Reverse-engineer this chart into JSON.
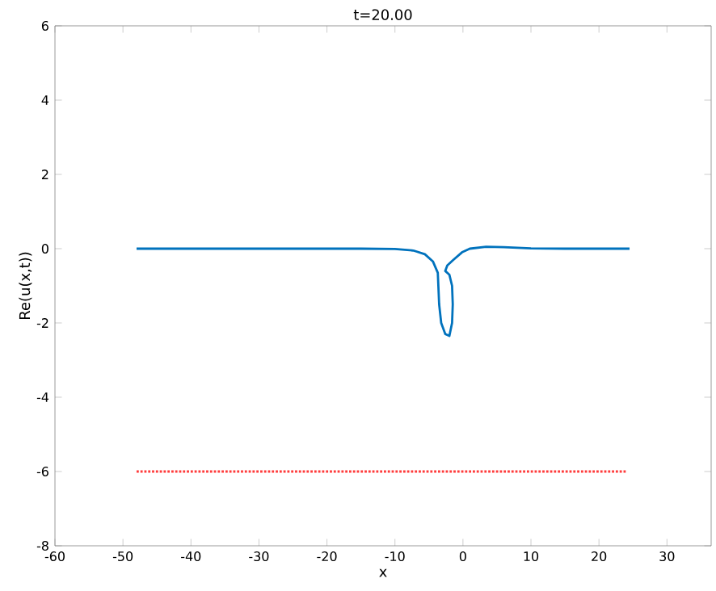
{
  "chart_data": {
    "type": "line",
    "title": "t=20.00",
    "xlabel": "x",
    "ylabel": "Re(u(x,t))",
    "xlim": [
      -60,
      36.5
    ],
    "ylim": [
      -8,
      6
    ],
    "xticks": [
      -60,
      -50,
      -40,
      -30,
      -20,
      -10,
      0,
      10,
      20,
      30
    ],
    "yticks": [
      -8,
      -6,
      -4,
      -2,
      0,
      2,
      4,
      6
    ],
    "grid": false,
    "series": [
      {
        "color": "#0072bd",
        "line_style": "solid",
        "x": [
          -48,
          -40,
          -30,
          -20,
          -15,
          -10,
          -7.3,
          -5.6,
          -4.4,
          -3.7,
          -3.5,
          -3.2,
          -2.6,
          -2.0,
          -1.6,
          -1.5,
          -1.6,
          -2.0,
          -2.6,
          -2.3,
          -1.4,
          -0.15,
          1.0,
          3.4,
          6,
          10,
          15,
          20,
          24.5
        ],
        "values": [
          0,
          0,
          0,
          0,
          0,
          -0.01,
          -0.05,
          -0.15,
          -0.35,
          -0.65,
          -1.5,
          -2.0,
          -2.3,
          -2.35,
          -2.0,
          -1.5,
          -1.0,
          -0.7,
          -0.6,
          -0.45,
          -0.3,
          -0.1,
          0,
          0.05,
          0.04,
          0.01,
          0,
          0,
          0
        ]
      },
      {
        "color": "#ff3b3b",
        "line_style": "dotted",
        "x": [
          -48,
          -4,
          -2,
          24
        ],
        "values": [
          -6,
          -6,
          -6,
          -6
        ]
      }
    ]
  }
}
